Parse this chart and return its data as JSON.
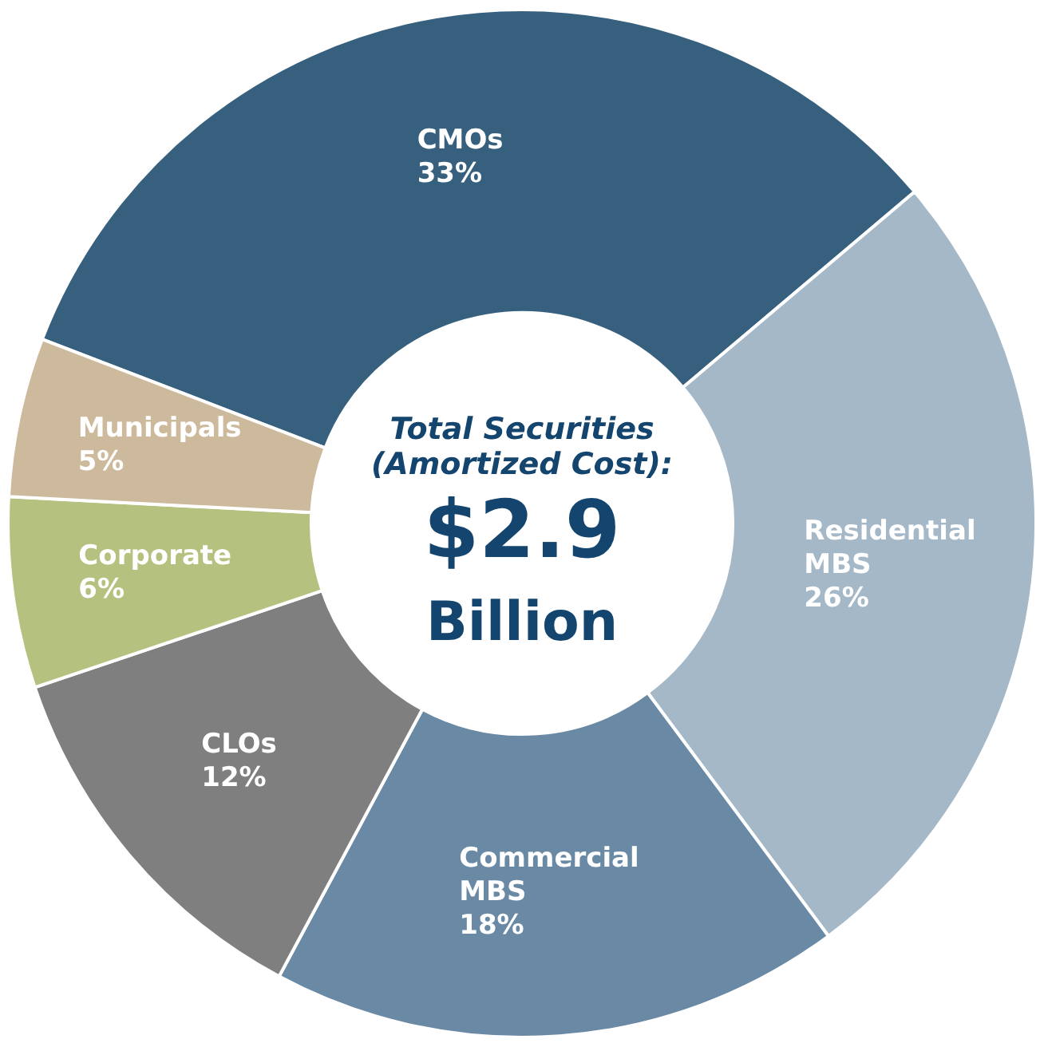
{
  "chart_data": {
    "type": "donut",
    "title": "Total Securities (Amortized Cost):",
    "annotations": [
      "$2.9",
      "Billion"
    ],
    "categories": [
      "CMOs",
      "Residential MBS",
      "Commercial MBS",
      "CLOs",
      "Corporate",
      "Municipals"
    ],
    "values": [
      33,
      26,
      18,
      12,
      6,
      5
    ],
    "colors": [
      "#37607f",
      "#a5b8c8",
      "#6a89a5",
      "#7f7f7f",
      "#b5c17e",
      "#cdb99c"
    ],
    "value_labels": [
      "33%",
      "26%",
      "18%",
      "12%",
      "6%",
      "5%"
    ],
    "legend": false
  }
}
